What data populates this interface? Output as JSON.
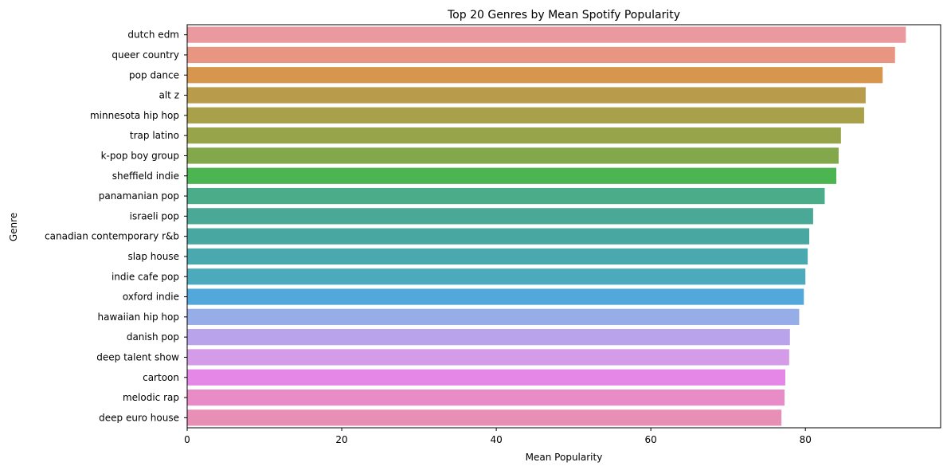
{
  "chart_data": {
    "type": "bar",
    "orientation": "horizontal",
    "title": "Top 20 Genres by Mean Spotify Popularity",
    "xlabel": "Mean Popularity",
    "ylabel": "Genre",
    "xlim": [
      0,
      97.5
    ],
    "xticks": [
      0,
      20,
      40,
      60,
      80
    ],
    "grid": false,
    "categories": [
      "dutch edm",
      "queer country",
      "pop dance",
      "alt z",
      "minnesota hip hop",
      "trap latino",
      "k-pop boy group",
      "sheffield indie",
      "panamanian pop",
      "israeli pop",
      "canadian contemporary r&b",
      "slap house",
      "indie cafe pop",
      "oxford indie",
      "hawaiian hip hop",
      "danish pop",
      "deep talent show",
      "cartoon",
      "melodic rap",
      "deep euro house"
    ],
    "values": [
      93.0,
      91.6,
      90.0,
      87.8,
      87.6,
      84.6,
      84.3,
      84.0,
      82.5,
      81.0,
      80.5,
      80.3,
      80.0,
      79.8,
      79.2,
      78.0,
      77.9,
      77.4,
      77.3,
      76.9
    ],
    "colors": [
      "#ea9a9e",
      "#e89681",
      "#d6964e",
      "#b99c4b",
      "#a9a04a",
      "#98a44a",
      "#83a84c",
      "#4db452",
      "#4aac88",
      "#49a896",
      "#49a7a2",
      "#4aa9af",
      "#4babbd",
      "#53a8db",
      "#97ade8",
      "#b9a4ec",
      "#d39be8",
      "#e487e6",
      "#e98bc7",
      "#e88fb5"
    ]
  }
}
